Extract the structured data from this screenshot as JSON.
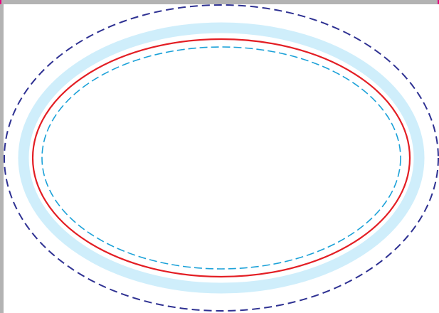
{
  "colors": {
    "background": "#ffffff",
    "frame": "#b3b3b3",
    "corner_marks": "#e6007e",
    "outer_dashed": "#2e3192",
    "safe_band": "#cfeefb",
    "cut_line": "#e31e24",
    "inner_dashed": "#1ba1d8"
  },
  "outlines": [
    {
      "role": "bleed-line",
      "style": "dashed"
    },
    {
      "role": "safety-band",
      "style": "solid-thick"
    },
    {
      "role": "cut-line",
      "style": "solid"
    },
    {
      "role": "safe-zone-line",
      "style": "dashed"
    }
  ]
}
